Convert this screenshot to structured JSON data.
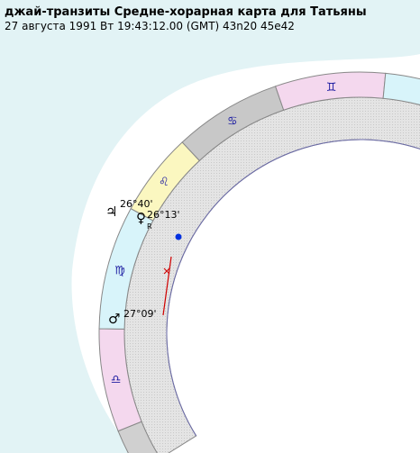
{
  "header": {
    "title": "джай-транзиты Средне-хорарная карта для Татьяны",
    "subtitle": "27 августа 1991  Вт  19:43:12.00 (GMT) 43n20  45e42"
  },
  "signs": [
    {
      "glyph": "♎"
    },
    {
      "glyph": "♍"
    },
    {
      "glyph": "♌"
    },
    {
      "glyph": "♋"
    },
    {
      "glyph": "♊"
    }
  ],
  "planets": [
    {
      "glyph": "♃",
      "label": "26°40'"
    },
    {
      "glyph": "♀",
      "label": "26°13'",
      "retro": "R"
    },
    {
      "glyph": "♂",
      "label": "27°09'"
    }
  ]
}
